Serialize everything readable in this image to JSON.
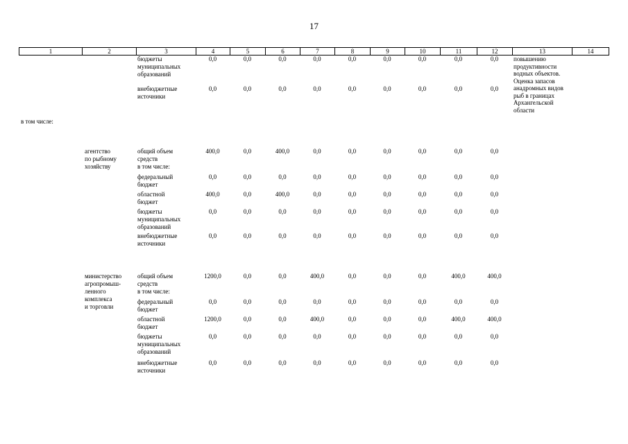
{
  "page": {
    "number": "17"
  },
  "table": {
    "header_cols": [
      "1",
      "2",
      "3",
      "4",
      "5",
      "6",
      "7",
      "8",
      "9",
      "10",
      "11",
      "12",
      "13",
      "14"
    ],
    "note_col13": "повышению\nпродуктивности\nводных объектов.\nОценка запасов\nанадромных видов\nрыб в границах\nАрхангельской\nобласти",
    "rows": [
      {
        "c1": "",
        "c2": "",
        "c3": "бюджеты\nмуниципальных\nобразований",
        "vals": [
          "0,0",
          "0,0",
          "0,0",
          "0,0",
          "0,0",
          "0,0",
          "0,0",
          "0,0",
          "0,0"
        ]
      },
      {
        "c1": "",
        "c2": "",
        "c3": "внебюджетные\nисточники",
        "vals": [
          "0,0",
          "0,0",
          "0,0",
          "0,0",
          "0,0",
          "0,0",
          "0,0",
          "0,0",
          "0,0"
        ]
      },
      {
        "c1": "в том числе:",
        "c2": "",
        "c3": "",
        "vals": [
          "",
          "",
          "",
          "",
          "",
          "",
          "",
          "",
          ""
        ]
      },
      {
        "c1": "",
        "c2": "агентство\nпо рыбному\nхозяйству",
        "c3": "общий объем\nсредств",
        "vals": [
          "400,0",
          "0,0",
          "400,0",
          "0,0",
          "0,0",
          "0,0",
          "0,0",
          "0,0",
          "0,0"
        ]
      },
      {
        "c1": "",
        "c2": "",
        "c3": "в том числе:",
        "vals": [
          "",
          "",
          "",
          "",
          "",
          "",
          "",
          "",
          ""
        ]
      },
      {
        "c1": "",
        "c2": "",
        "c3": "федеральный\nбюджет",
        "vals": [
          "0,0",
          "0,0",
          "0,0",
          "0,0",
          "0,0",
          "0,0",
          "0,0",
          "0,0",
          "0,0"
        ]
      },
      {
        "c1": "",
        "c2": "",
        "c3": "областной\nбюджет",
        "vals": [
          "400,0",
          "0,0",
          "400,0",
          "0,0",
          "0,0",
          "0,0",
          "0,0",
          "0,0",
          "0,0"
        ]
      },
      {
        "c1": "",
        "c2": "",
        "c3": "бюджеты\nмуниципальных\nобразований",
        "vals": [
          "0,0",
          "0,0",
          "0,0",
          "0,0",
          "0,0",
          "0,0",
          "0,0",
          "0,0",
          "0,0"
        ]
      },
      {
        "c1": "",
        "c2": "",
        "c3": "внебюджетные\nисточники",
        "vals": [
          "0,0",
          "0,0",
          "0,0",
          "0,0",
          "0,0",
          "0,0",
          "0,0",
          "0,0",
          "0,0"
        ]
      },
      {
        "c1": "",
        "c2": "министерство\nагропромыш-\nленного\nкомплекса\nи торговли",
        "c3": "общий объем\nсредств",
        "vals": [
          "1200,0",
          "0,0",
          "0,0",
          "400,0",
          "0,0",
          "0,0",
          "0,0",
          "400,0",
          "400,0"
        ]
      },
      {
        "c1": "",
        "c2": "",
        "c3": "в том числе:",
        "vals": [
          "",
          "",
          "",
          "",
          "",
          "",
          "",
          "",
          ""
        ]
      },
      {
        "c1": "",
        "c2": "",
        "c3": "федеральный\nбюджет",
        "vals": [
          "0,0",
          "0,0",
          "0,0",
          "0,0",
          "0,0",
          "0,0",
          "0,0",
          "0,0",
          "0,0"
        ]
      },
      {
        "c1": "",
        "c2": "",
        "c3": "областной\nбюджет",
        "vals": [
          "1200,0",
          "0,0",
          "0,0",
          "400,0",
          "0,0",
          "0,0",
          "0,0",
          "400,0",
          "400,0"
        ]
      },
      {
        "c1": "",
        "c2": "",
        "c3": "бюджеты\nмуниципальных\nобразований",
        "vals": [
          "0,0",
          "0,0",
          "0,0",
          "0,0",
          "0,0",
          "0,0",
          "0,0",
          "0,0",
          "0,0"
        ]
      },
      {
        "c1": "",
        "c2": "",
        "c3": "внебюджетные\nисточники",
        "vals": [
          "0,0",
          "0,0",
          "0,0",
          "0,0",
          "0,0",
          "0,0",
          "0,0",
          "0,0",
          "0,0"
        ]
      }
    ]
  }
}
